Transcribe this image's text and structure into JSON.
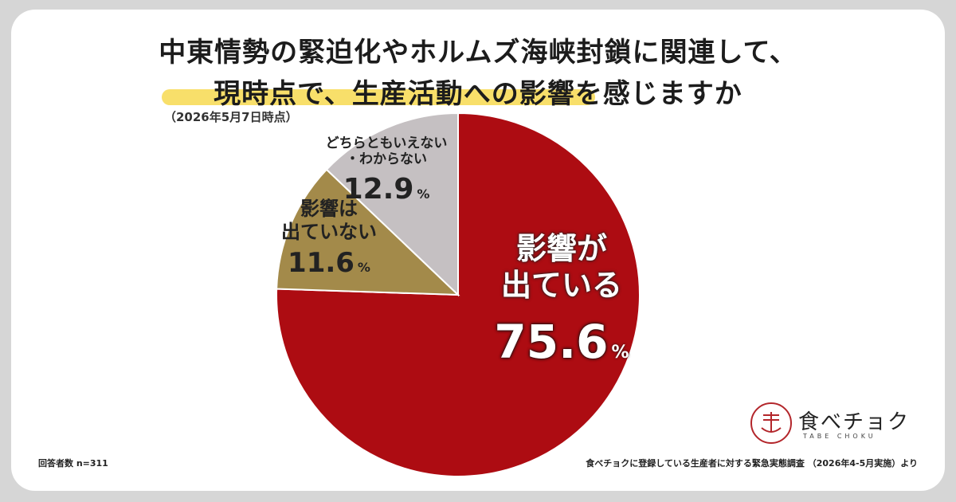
{
  "title": {
    "line1": "中東情勢の緊迫化やホルムズ海峡封鎖に関連して、",
    "line2": "現時点で、生産活動への影響を感じますか"
  },
  "date_note": "（2026年5月7日時点）",
  "respondents": "回答者数 n=311",
  "source": "食べチョクに登録している生産者に対する緊急実態調査 （2026年4-5月実施）より",
  "logo": {
    "name": "食べチョク",
    "sub": "TABE CHOKU"
  },
  "colors": {
    "affected": "#ad0c12",
    "not_affected": "#a38a4a",
    "other": "#c5c0c2",
    "highlight": "#f8df6a",
    "frame": "#d6d6d6"
  },
  "chart_data": {
    "type": "pie",
    "start_angle_deg": 0,
    "direction": "clockwise",
    "slices": [
      {
        "label_line1": "影響が",
        "label_line2": "出ている",
        "value": 75.6,
        "value_text": "75.6",
        "unit": "%"
      },
      {
        "label_line1": "影響は",
        "label_line2": "出ていない",
        "value": 11.6,
        "value_text": "11.6",
        "unit": "%"
      },
      {
        "label_line1": "どちらともいえない",
        "label_line2": "・わからない",
        "value": 12.9,
        "value_text": "12.9",
        "unit": "%"
      }
    ]
  }
}
